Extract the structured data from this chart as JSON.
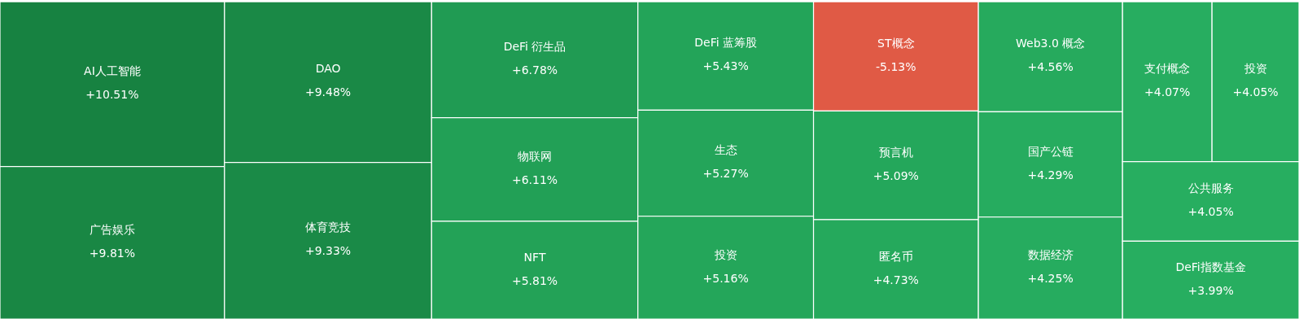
{
  "chart_data": {
    "type": "other",
    "categories": [
      "AI人工智能",
      "广告娱乐",
      "DAO",
      "体育竞技",
      "DeFi 衍生品",
      "物联网",
      "NFT",
      "DeFi 蓝筹股",
      "生态",
      "投资",
      "ST概念",
      "预言机",
      "匿名币",
      "Web3.0 概念",
      "国产公链",
      "数据经济",
      "支付概念",
      "投资",
      "公共服务",
      "DeFi指数基金"
    ],
    "values": [
      10.51,
      9.81,
      9.48,
      9.33,
      6.78,
      6.11,
      5.81,
      5.43,
      5.27,
      5.16,
      -5.13,
      5.09,
      4.73,
      4.56,
      4.29,
      4.25,
      4.07,
      4.05,
      4.05,
      3.99
    ],
    "value_labels": [
      "+10.51%",
      "+9.81%",
      "+9.48%",
      "+9.33%",
      "+6.78%",
      "+6.11%",
      "+5.81%",
      "+5.43%",
      "+5.27%",
      "+5.16%",
      "-5.13%",
      "+5.09%",
      "+4.73%",
      "+4.56%",
      "+4.29%",
      "+4.25%",
      "+4.07%",
      "+4.05%",
      "+4.05%",
      "+3.99%"
    ]
  }
}
